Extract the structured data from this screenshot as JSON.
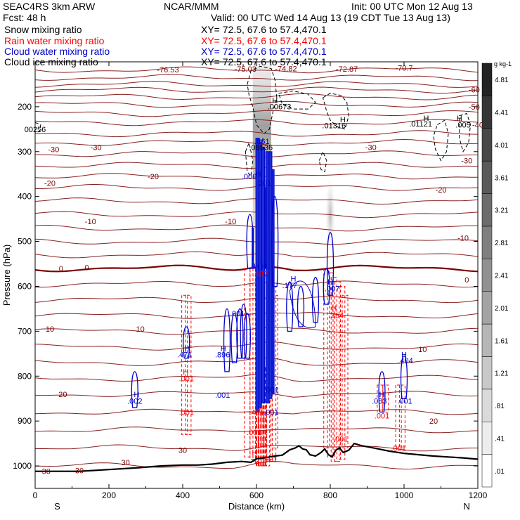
{
  "header": {
    "model": "SEAC4RS 3km ARW",
    "forecast": "Fcst: 48 h",
    "org": "NCAR/MMM",
    "init": "Init: 00 UTC Mon 12 Aug 13",
    "valid": "Valid: 00 UTC Wed 14 Aug 13 (19 CDT Tue 13 Aug 13)"
  },
  "fields": [
    {
      "label": "Snow mixing ratio",
      "xy": "XY=  72.5, 67.6 to  57.4,470.1",
      "color": "#000000"
    },
    {
      "label": "Rain water mixing ratio",
      "xy": "XY=  72.5, 67.6 to  57.4,470.1",
      "color": "#ff0000"
    },
    {
      "label": "Cloud water mixing ratio",
      "xy": "XY=  72.5, 67.6 to  57.4,470.1",
      "color": "#0000cc"
    },
    {
      "label": "Cloud ice mixing ratio",
      "xy": "XY=  72.5, 67.6 to  57.4,470.1",
      "color": "#000000"
    }
  ],
  "chart_data": {
    "type": "cross-section",
    "xlabel": "Distance (km)",
    "ylabel": "Pressure (hPa)",
    "xlim": [
      0,
      1200
    ],
    "ylim": [
      1050,
      100
    ],
    "x_ticks": [
      0,
      200,
      400,
      600,
      800,
      1000,
      1200
    ],
    "y_ticks": [
      200,
      300,
      400,
      500,
      600,
      700,
      800,
      900,
      1000
    ],
    "end_labels": {
      "left": "S",
      "right": "N"
    },
    "temperature_levels": [
      -76.53,
      -75.03,
      -74.82,
      -72.87,
      -70.7,
      -60,
      -50,
      -40,
      -30,
      -20,
      -10,
      0,
      10,
      20,
      30
    ],
    "temperature_labels": [
      {
        "x": 30,
        "p": 1012,
        "text": "30"
      },
      {
        "x": 120,
        "p": 1010,
        "text": "30"
      },
      {
        "x": 245,
        "p": 992,
        "text": "30"
      },
      {
        "x": 400,
        "p": 965,
        "text": "30"
      },
      {
        "x": 1080,
        "p": 900,
        "text": "20"
      },
      {
        "x": 75,
        "p": 840,
        "text": "20"
      },
      {
        "x": 40,
        "p": 695,
        "text": "10"
      },
      {
        "x": 285,
        "p": 695,
        "text": "10"
      },
      {
        "x": 1050,
        "p": 740,
        "text": "10"
      },
      {
        "x": 70,
        "p": 560,
        "text": "0"
      },
      {
        "x": 140,
        "p": 558,
        "text": "0"
      },
      {
        "x": 1170,
        "p": 585,
        "text": "0"
      },
      {
        "x": 150,
        "p": 455,
        "text": "-10"
      },
      {
        "x": 530,
        "p": 455,
        "text": "-10"
      },
      {
        "x": 1160,
        "p": 492,
        "text": "-10"
      },
      {
        "x": 40,
        "p": 370,
        "text": "-20"
      },
      {
        "x": 320,
        "p": 355,
        "text": "-20"
      },
      {
        "x": 1100,
        "p": 385,
        "text": "-20"
      },
      {
        "x": 50,
        "p": 295,
        "text": "-30"
      },
      {
        "x": 165,
        "p": 290,
        "text": "-30"
      },
      {
        "x": 910,
        "p": 290,
        "text": "-30"
      },
      {
        "x": 1170,
        "p": 320,
        "text": "-30"
      },
      {
        "x": 1190,
        "p": 200,
        "text": "-50"
      },
      {
        "x": 1190,
        "p": 162,
        "text": "-60"
      },
      {
        "x": 1200,
        "p": 240,
        "text": "-40"
      },
      {
        "x": 360,
        "p": 117,
        "text": "-76.53"
      },
      {
        "x": 570,
        "p": 116,
        "text": "-75.03"
      },
      {
        "x": 680,
        "p": 115,
        "text": "-74.82"
      },
      {
        "x": 845,
        "p": 116,
        "text": "-72.87"
      },
      {
        "x": 1000,
        "p": 113,
        "text": "-70.7"
      }
    ],
    "extrema_labels": [
      {
        "x": 0,
        "p": 250,
        "text": "00256",
        "color": "#000000"
      },
      {
        "x": 650,
        "p": 185,
        "text": "H",
        "color": "#000000"
      },
      {
        "x": 662,
        "p": 199,
        "text": ".00673",
        "color": "#000000"
      },
      {
        "x": 834,
        "p": 228,
        "text": "H",
        "color": "#000000"
      },
      {
        "x": 810,
        "p": 242,
        "text": ".01316",
        "color": "#000000"
      },
      {
        "x": 1060,
        "p": 225,
        "text": "H",
        "color": "#000000"
      },
      {
        "x": 1045,
        "p": 238,
        "text": ".01121",
        "color": "#000000"
      },
      {
        "x": 1150,
        "p": 225,
        "text": "H",
        "color": "#000000"
      },
      {
        "x": 1160,
        "p": 240,
        "text": ".005",
        "color": "#000000"
      },
      {
        "x": 612,
        "p": 290,
        "text": ".08536",
        "color": "#000000"
      },
      {
        "x": 612,
        "p": 275,
        "text": "H",
        "color": "#0000cc"
      },
      {
        "x": 615,
        "p": 277,
        "text": ".861",
        "color": "#0000cc"
      },
      {
        "x": 620,
        "p": 370,
        "text": ".201",
        "color": "#0000cc"
      },
      {
        "x": 580,
        "p": 355,
        "text": ".006",
        "color": "#0000cc"
      },
      {
        "x": 605,
        "p": 350,
        "text": "H",
        "color": "#0000cc"
      },
      {
        "x": 620,
        "p": 555,
        "text": "H",
        "color": "#0000cc"
      },
      {
        "x": 600,
        "p": 555,
        "text": "H",
        "color": "#0000cc"
      },
      {
        "x": 610,
        "p": 572,
        "text": ".407",
        "color": "#ff0000"
      },
      {
        "x": 700,
        "p": 583,
        "text": "H",
        "color": "#0000cc"
      },
      {
        "x": 690,
        "p": 598,
        "text": ".177",
        "color": "#0000cc"
      },
      {
        "x": 800,
        "p": 590,
        "text": "H",
        "color": "#0000cc"
      },
      {
        "x": 805,
        "p": 605,
        "text": ".007",
        "color": "#0000cc"
      },
      {
        "x": 810,
        "p": 648,
        "text": "H",
        "color": "#ff0000"
      },
      {
        "x": 816,
        "p": 664,
        "text": ".354",
        "color": "#ff0000"
      },
      {
        "x": 548,
        "p": 660,
        "text": ".001",
        "color": "#0000cc"
      },
      {
        "x": 412,
        "p": 738,
        "text": "H",
        "color": "#0000cc"
      },
      {
        "x": 405,
        "p": 752,
        "text": ".471",
        "color": "#0000cc"
      },
      {
        "x": 510,
        "p": 738,
        "text": "H",
        "color": "#0000cc"
      },
      {
        "x": 508,
        "p": 752,
        "text": ".896",
        "color": "#0000cc"
      },
      {
        "x": 408,
        "p": 790,
        "text": "H",
        "color": "#ff0000"
      },
      {
        "x": 410,
        "p": 805,
        "text": ".001",
        "color": "#ff0000"
      },
      {
        "x": 1000,
        "p": 752,
        "text": "H",
        "color": "#0000cc"
      },
      {
        "x": 1004,
        "p": 765,
        "text": ".404",
        "color": "#0000cc"
      },
      {
        "x": 275,
        "p": 840,
        "text": "H",
        "color": "#0000cc"
      },
      {
        "x": 270,
        "p": 855,
        "text": ".002",
        "color": "#0000cc"
      },
      {
        "x": 508,
        "p": 842,
        "text": ".001",
        "color": "#0000cc"
      },
      {
        "x": 640,
        "p": 830,
        "text": ".001",
        "color": "#0000cc"
      },
      {
        "x": 940,
        "p": 840,
        "text": "H",
        "color": "#0000cc"
      },
      {
        "x": 933,
        "p": 855,
        "text": ".083",
        "color": "#0000cc"
      },
      {
        "x": 1002,
        "p": 855,
        "text": ".001",
        "color": "#0000cc"
      },
      {
        "x": 410,
        "p": 880,
        "text": ".001",
        "color": "#ff0000"
      },
      {
        "x": 600,
        "p": 880,
        "text": ".401",
        "color": "#ff0000"
      },
      {
        "x": 640,
        "p": 880,
        "text": ".001",
        "color": "#0000cc"
      },
      {
        "x": 940,
        "p": 888,
        "text": ".001",
        "color": "#ff0000"
      },
      {
        "x": 594,
        "p": 925,
        "text": ".001",
        "color": "#ff0000"
      },
      {
        "x": 828,
        "p": 940,
        "text": ".001",
        "color": "#ff0000"
      },
      {
        "x": 985,
        "p": 960,
        "text": ".001",
        "color": "#ff0000"
      },
      {
        "x": 636,
        "p": 985,
        "text": ".001",
        "color": "#ff0000"
      },
      {
        "x": 595,
        "p": 970,
        "text": "H",
        "color": "#ff0000"
      }
    ],
    "terrain": [
      [
        0,
        1012
      ],
      [
        60,
        1012
      ],
      [
        120,
        1012
      ],
      [
        200,
        1008
      ],
      [
        280,
        1004
      ],
      [
        340,
        1000
      ],
      [
        400,
        998
      ],
      [
        440,
        998
      ],
      [
        480,
        996
      ],
      [
        520,
        992
      ],
      [
        560,
        990
      ],
      [
        585,
        992
      ],
      [
        600,
        984
      ],
      [
        620,
        982
      ],
      [
        650,
        978
      ],
      [
        670,
        976
      ],
      [
        690,
        964
      ],
      [
        705,
        960
      ],
      [
        715,
        955
      ],
      [
        725,
        962
      ],
      [
        735,
        964
      ],
      [
        745,
        975
      ],
      [
        760,
        978
      ],
      [
        775,
        970
      ],
      [
        785,
        962
      ],
      [
        795,
        975
      ],
      [
        805,
        980
      ],
      [
        815,
        965
      ],
      [
        825,
        960
      ],
      [
        835,
        970
      ],
      [
        850,
        965
      ],
      [
        865,
        950
      ],
      [
        885,
        955
      ],
      [
        905,
        958
      ],
      [
        930,
        962
      ],
      [
        960,
        967
      ],
      [
        1000,
        972
      ],
      [
        1040,
        975
      ],
      [
        1080,
        978
      ],
      [
        1120,
        980
      ],
      [
        1160,
        982
      ],
      [
        1200,
        985
      ]
    ],
    "colorbar": {
      "unit": "g kg-1",
      "levels": [
        ".01",
        ".41",
        ".81",
        "1.21",
        "1.61",
        "2.01",
        "2.41",
        "2.81",
        "3.21",
        "3.61",
        "4.01",
        "4.41",
        "4.81"
      ]
    }
  }
}
